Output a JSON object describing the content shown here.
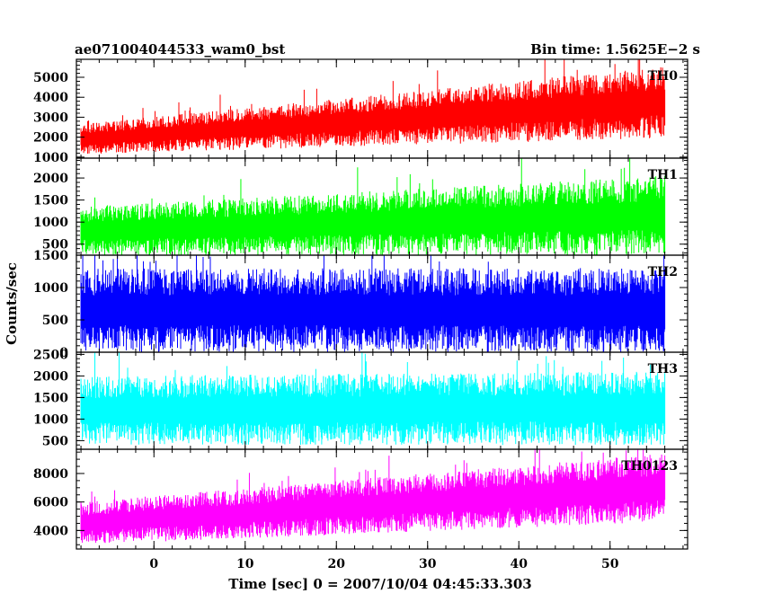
{
  "header": {
    "object_name": "ae071004044533_wam0_bst",
    "bin_time": "Bin time: 1.5625E−2 s"
  },
  "chart_data": {
    "type": "line",
    "x_axis": {
      "label": "Time [sec] 0 = 2007/10/04 04:45:33.303",
      "range": [
        -8.5,
        58.5
      ],
      "ticks": [
        0,
        10,
        20,
        30,
        40,
        50
      ],
      "tick_labels": [
        "0",
        "10",
        "20",
        "30",
        "40",
        "50"
      ],
      "minor_step": 2
    },
    "y_axis_label": "Counts/sec",
    "grid": false,
    "panels": [
      {
        "name": "TH0",
        "color": "#ff0000",
        "ylim": [
          950,
          5900
        ],
        "ticks": [
          1000,
          2000,
          3000,
          4000,
          5000
        ],
        "tick_labels": [
          "1000",
          "2000",
          "3000",
          "4000",
          "5000"
        ],
        "minor_step": 200,
        "series": {
          "t_start": -8,
          "t_end": 56,
          "mean_start": 1900,
          "mean_end": 3750,
          "spread_start": 750,
          "spread_end": 1800
        }
      },
      {
        "name": "TH1",
        "color": "#00ff00",
        "ylim": [
          250,
          2450
        ],
        "ticks": [
          500,
          1000,
          1500,
          2000
        ],
        "tick_labels": [
          "500",
          "1000",
          "1500",
          "2000"
        ],
        "minor_step": 100,
        "series": {
          "t_start": -8,
          "t_end": 56,
          "mean_start": 800,
          "mean_end": 1150,
          "spread_start": 550,
          "spread_end": 900
        }
      },
      {
        "name": "TH2",
        "color": "#0000ff",
        "ylim": [
          0,
          1500
        ],
        "ticks": [
          0,
          500,
          1000,
          1500
        ],
        "tick_labels": [
          "0",
          "500",
          "1000",
          "1500"
        ],
        "minor_step": 100,
        "series": {
          "t_start": -8,
          "t_end": 56,
          "mean_start": 650,
          "mean_end": 650,
          "spread_start": 650,
          "spread_end": 650
        }
      },
      {
        "name": "TH3",
        "color": "#00ffff",
        "ylim": [
          300,
          2550
        ],
        "ticks": [
          500,
          1000,
          1500,
          2000,
          2500
        ],
        "tick_labels": [
          "500",
          "1000",
          "1500",
          "2000",
          "2500"
        ],
        "minor_step": 100,
        "series": {
          "t_start": -8,
          "t_end": 56,
          "mean_start": 1200,
          "mean_end": 1250,
          "spread_start": 800,
          "spread_end": 850
        }
      },
      {
        "name": "TH0123",
        "color": "#ff00ff",
        "ylim": [
          2700,
          9700
        ],
        "ticks": [
          4000,
          6000,
          8000
        ],
        "tick_labels": [
          "4000",
          "6000",
          "8000"
        ],
        "minor_step": 500,
        "series": {
          "t_start": -8,
          "t_end": 56,
          "mean_start": 4500,
          "mean_end": 7000,
          "spread_start": 1500,
          "spread_end": 2400
        }
      }
    ]
  }
}
